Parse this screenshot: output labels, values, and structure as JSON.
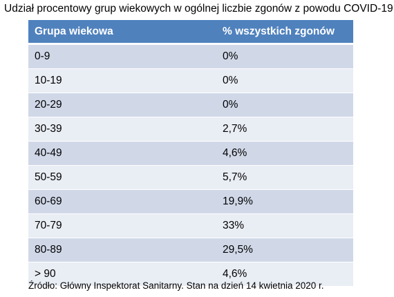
{
  "chart_data": {
    "type": "table",
    "title": "Udział procentowy grup wiekowych w ogólnej liczbie zgonów z powodu COVID-19",
    "columns": [
      "Grupa wiekowa",
      "% wszystkich zgonów"
    ],
    "rows": [
      [
        "0-9",
        "0%"
      ],
      [
        "10-19",
        "0%"
      ],
      [
        "20-29",
        "0%"
      ],
      [
        "30-39",
        "2,7%"
      ],
      [
        "40-49",
        "4,6%"
      ],
      [
        "50-59",
        "5,7%"
      ],
      [
        "60-69",
        "19,9%"
      ],
      [
        "70-79",
        "33%"
      ],
      [
        "80-89",
        "29,5%"
      ],
      [
        "> 90",
        "4,6%"
      ]
    ],
    "source": "Źródło: Główny Inspektorat Sanitarny. Stan na dzień 14 kwietnia 2020 r."
  },
  "colors": {
    "header_bg": "#4f81bd",
    "row_odd": "#d0d8e8",
    "row_even": "#e9edf4"
  }
}
